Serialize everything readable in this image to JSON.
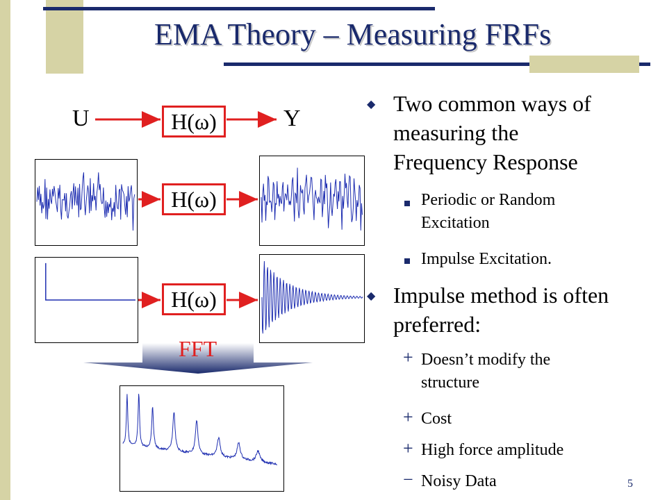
{
  "slide": {
    "title": "EMA Theory – Measuring FRFs",
    "page_number": "5"
  },
  "diagram": {
    "input_label": "U",
    "output_label": "Y",
    "transfer_label": "H(ω)",
    "transform_label": "FFT"
  },
  "bullets": [
    {
      "text": "Two common ways of measuring the Frequency Response",
      "lines": [
        "Two common ways of",
        "measuring the",
        "Frequency Response"
      ],
      "marker": "◆",
      "sub": [
        {
          "lines": [
            "Periodic or Random",
            "Excitation"
          ],
          "marker": "■"
        },
        {
          "lines": [
            "Impulse Excitation."
          ],
          "marker": "■"
        }
      ]
    },
    {
      "text": "Impulse method is often preferred:",
      "lines": [
        "Impulse method is often",
        "preferred:"
      ],
      "marker": "◆",
      "sub": [
        {
          "lines": [
            "Doesn’t modify the",
            "structure"
          ],
          "marker": "+"
        },
        {
          "lines": [
            "Cost"
          ],
          "marker": "+"
        },
        {
          "lines": [
            "High force amplitude"
          ],
          "marker": "+"
        },
        {
          "lines": [
            "Noisy Data"
          ],
          "marker": "−"
        }
      ]
    }
  ],
  "colors": {
    "navy": "#1a2a6c",
    "accent_red": "#e02020",
    "tan": "#d6d3a5",
    "signal_blue": "#1c2cb0"
  }
}
